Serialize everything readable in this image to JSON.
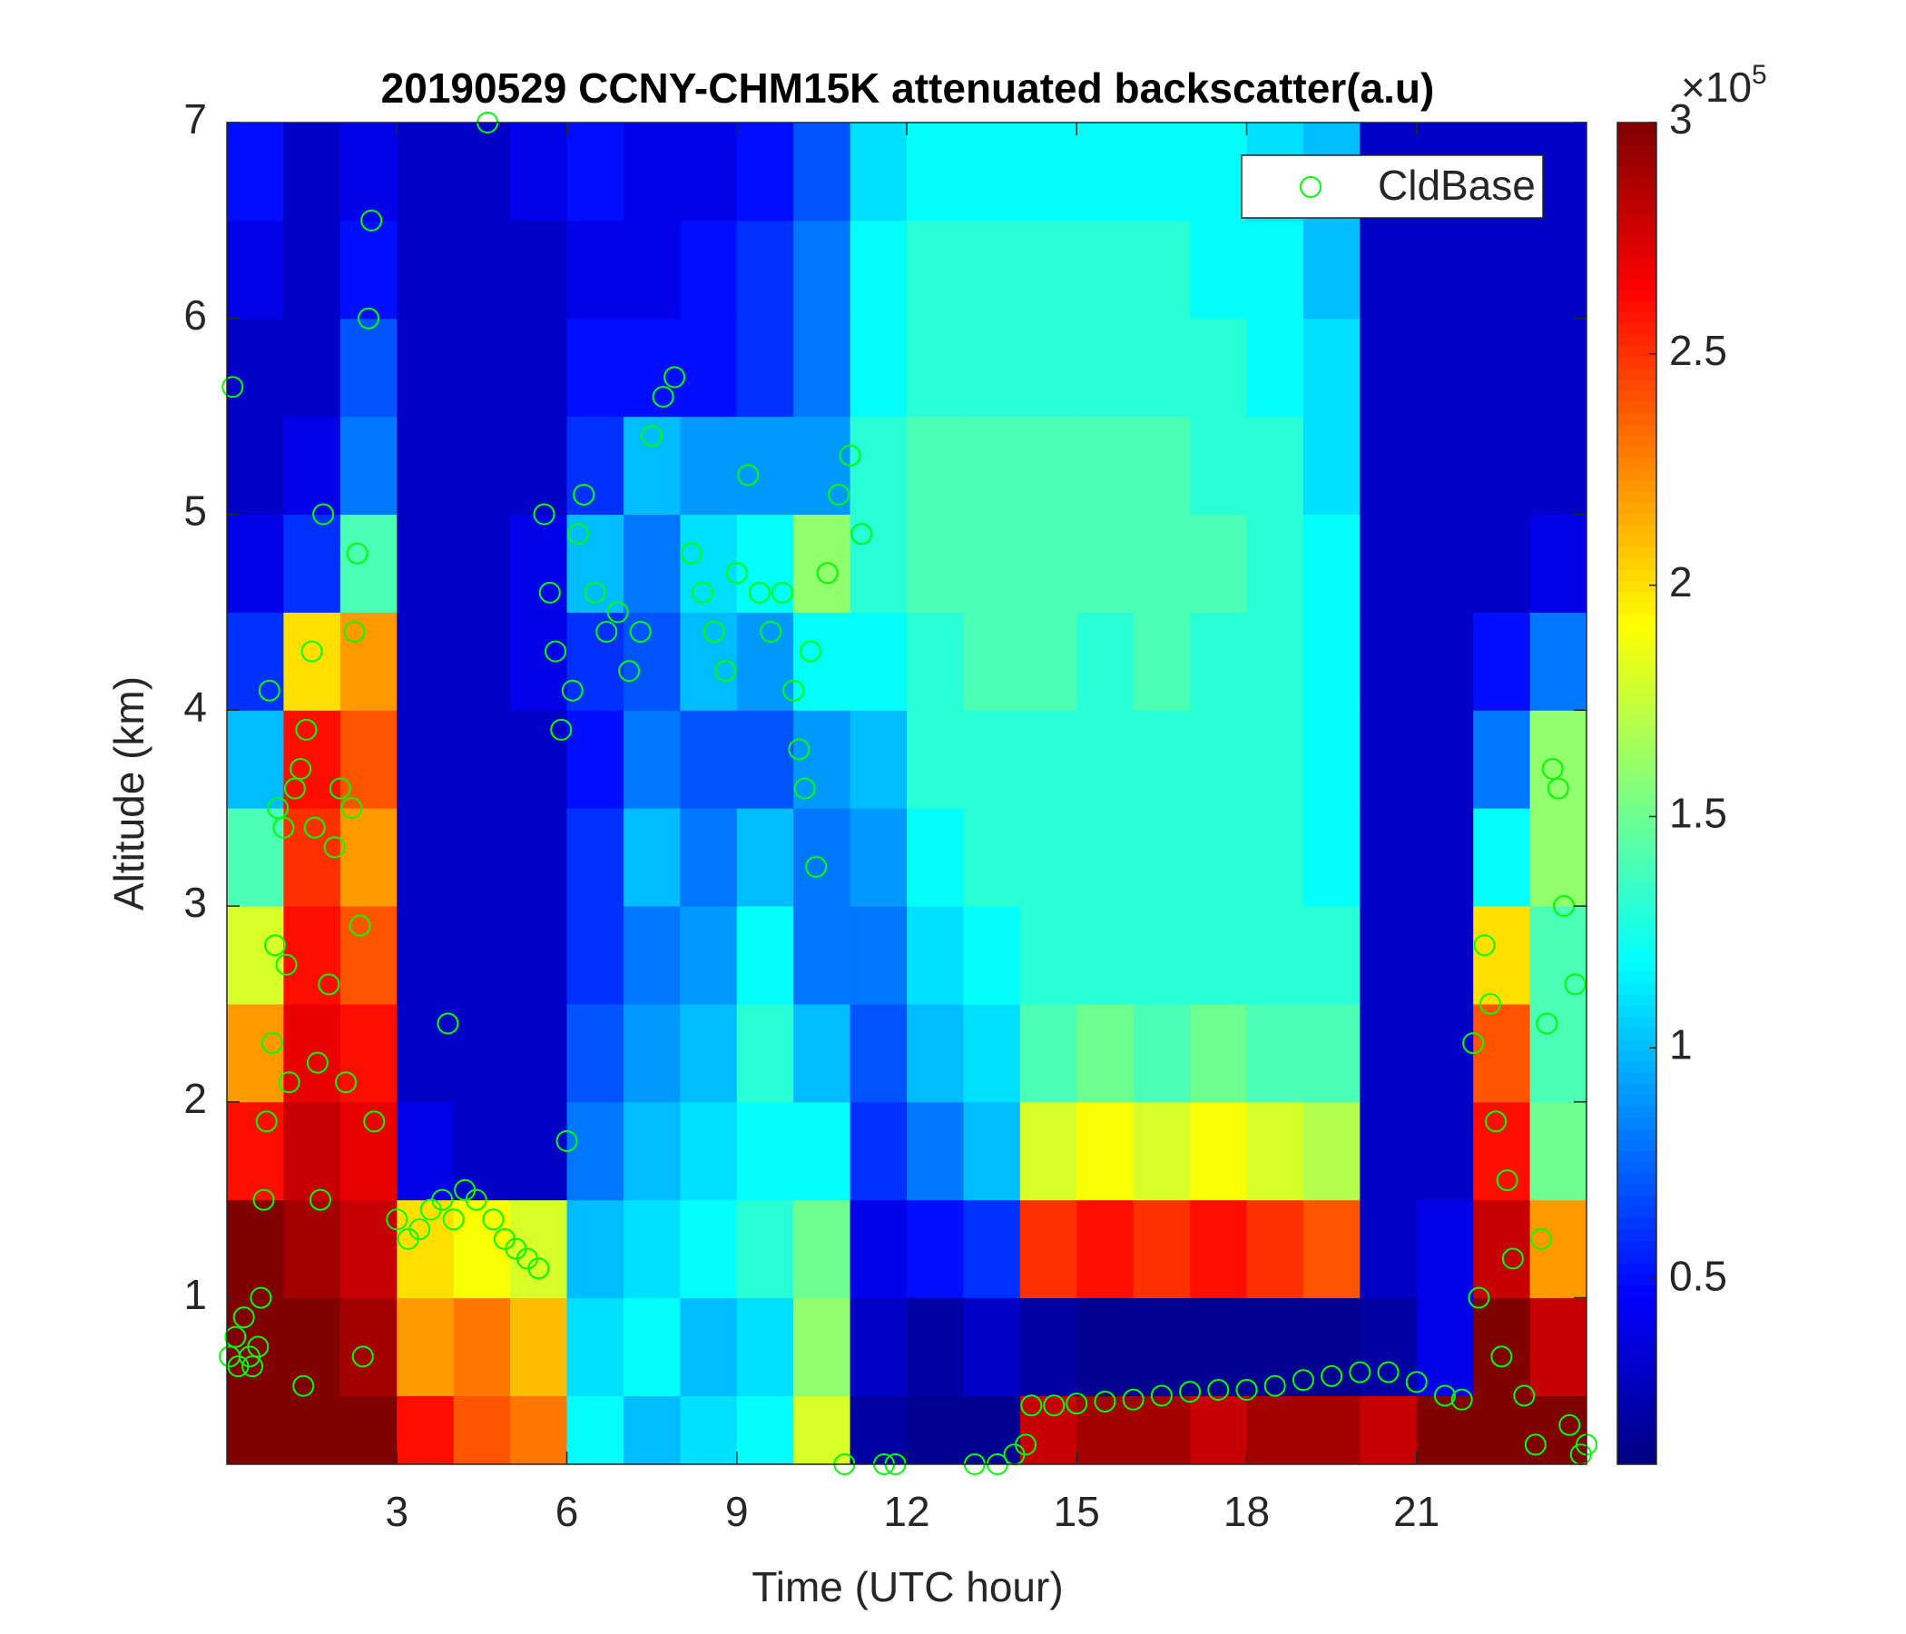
{
  "chart_data": {
    "type": "heatmap",
    "title": "20190529 CCNY-CHM15K attenuated backscatter(a.u)",
    "xlabel": "Time (UTC hour)",
    "ylabel": "Altitude (km)",
    "xlim": [
      0,
      24
    ],
    "ylim": [
      0.15,
      7
    ],
    "xticks": [
      3,
      6,
      9,
      12,
      15,
      18,
      21
    ],
    "yticks": [
      1,
      2,
      3,
      4,
      5,
      6,
      7
    ],
    "colormap": "jet",
    "clim": [
      0.1,
      3
    ],
    "cticks": [
      0.5,
      1,
      1.5,
      2,
      2.5,
      3
    ],
    "colorbar_scale_base": "×10",
    "colorbar_scale_exponent": 5,
    "xbins": [
      0,
      1,
      2,
      3,
      4,
      5,
      6,
      7,
      8,
      9,
      10,
      11,
      12,
      13,
      14,
      15,
      16,
      17,
      18,
      19,
      20,
      21,
      22,
      23,
      24
    ],
    "ybins": [
      0.15,
      0.5,
      1,
      1.5,
      2,
      2.5,
      3,
      3.5,
      4,
      4.5,
      5,
      5.5,
      6,
      6.5,
      7
    ],
    "z": [
      [
        3,
        3,
        3,
        2.6,
        2.4,
        2.3,
        1.2,
        1.0,
        1.1,
        1.2,
        1.8,
        0.2,
        0.15,
        0.15,
        2.8,
        2.9,
        2.9,
        2.8,
        2.9,
        2.9,
        2.8,
        3,
        3,
        3
      ],
      [
        3,
        3,
        2.9,
        2.2,
        2.3,
        2.1,
        1.1,
        1.2,
        1.0,
        1.1,
        1.6,
        0.3,
        0.2,
        0.3,
        0.2,
        0.15,
        0.15,
        0.15,
        0.15,
        0.15,
        0.2,
        0.4,
        3,
        2.8
      ],
      [
        3,
        2.9,
        2.8,
        2.0,
        1.9,
        1.8,
        1.0,
        1.1,
        1.2,
        1.3,
        1.5,
        0.4,
        0.5,
        0.6,
        2.5,
        2.6,
        2.5,
        2.6,
        2.5,
        2.4,
        0.3,
        0.4,
        2.8,
        2.2
      ],
      [
        2.6,
        2.8,
        2.7,
        0.4,
        0.3,
        0.3,
        0.8,
        1.0,
        1.1,
        1.2,
        1.2,
        0.6,
        0.8,
        1.0,
        1.8,
        1.9,
        1.8,
        1.9,
        1.8,
        1.7,
        0.3,
        0.3,
        2.6,
        1.5
      ],
      [
        2.2,
        2.7,
        2.6,
        0.3,
        0.3,
        0.3,
        0.7,
        0.9,
        1.0,
        1.3,
        1.0,
        0.7,
        1.0,
        1.1,
        1.4,
        1.5,
        1.4,
        1.5,
        1.4,
        1.4,
        0.3,
        0.3,
        2.4,
        1.4
      ],
      [
        1.8,
        2.6,
        2.4,
        0.3,
        0.3,
        0.3,
        0.6,
        0.8,
        0.9,
        1.2,
        0.8,
        0.8,
        1.1,
        1.2,
        1.3,
        1.3,
        1.3,
        1.3,
        1.3,
        1.3,
        0.3,
        0.3,
        2.0,
        1.4
      ],
      [
        1.4,
        2.5,
        2.2,
        0.3,
        0.3,
        0.3,
        0.6,
        1.0,
        0.8,
        1.0,
        0.8,
        0.9,
        1.2,
        1.3,
        1.3,
        1.3,
        1.3,
        1.3,
        1.3,
        1.2,
        0.3,
        0.3,
        1.2,
        1.6
      ],
      [
        1.0,
        2.6,
        2.4,
        0.3,
        0.3,
        0.3,
        0.5,
        0.8,
        0.7,
        0.7,
        0.9,
        1.0,
        1.3,
        1.3,
        1.3,
        1.3,
        1.3,
        1.3,
        1.3,
        1.2,
        0.3,
        0.3,
        0.8,
        1.6
      ],
      [
        0.6,
        2.0,
        2.2,
        0.3,
        0.3,
        0.4,
        0.6,
        0.7,
        1.0,
        0.9,
        1.2,
        1.2,
        1.3,
        1.4,
        1.4,
        1.3,
        1.4,
        1.3,
        1.3,
        1.2,
        0.3,
        0.3,
        0.5,
        0.8
      ],
      [
        0.4,
        0.6,
        1.4,
        0.3,
        0.3,
        0.4,
        1.0,
        0.8,
        1.1,
        1.2,
        1.6,
        1.3,
        1.4,
        1.4,
        1.4,
        1.4,
        1.4,
        1.4,
        1.3,
        1.2,
        0.3,
        0.3,
        0.3,
        0.4
      ],
      [
        0.3,
        0.4,
        0.8,
        0.3,
        0.3,
        0.3,
        0.6,
        1.0,
        0.9,
        0.9,
        0.9,
        1.3,
        1.4,
        1.4,
        1.4,
        1.4,
        1.4,
        1.3,
        1.3,
        1.1,
        0.3,
        0.3,
        0.3,
        0.3
      ],
      [
        0.3,
        0.3,
        0.7,
        0.3,
        0.3,
        0.3,
        0.5,
        0.5,
        0.5,
        0.6,
        0.8,
        1.2,
        1.3,
        1.3,
        1.3,
        1.3,
        1.3,
        1.3,
        1.2,
        1.1,
        0.3,
        0.3,
        0.3,
        0.3
      ],
      [
        0.4,
        0.3,
        0.5,
        0.3,
        0.3,
        0.3,
        0.4,
        0.4,
        0.5,
        0.6,
        0.8,
        1.2,
        1.3,
        1.3,
        1.3,
        1.3,
        1.3,
        1.2,
        1.2,
        1.0,
        0.3,
        0.3,
        0.3,
        0.3
      ],
      [
        0.5,
        0.3,
        0.4,
        0.3,
        0.3,
        0.4,
        0.5,
        0.4,
        0.4,
        0.5,
        0.7,
        1.1,
        1.2,
        1.2,
        1.2,
        1.2,
        1.2,
        1.2,
        1.1,
        1.0,
        0.3,
        0.3,
        0.3,
        0.3
      ]
    ],
    "legend": "northeast",
    "series": [
      {
        "name": "CldBase",
        "type": "scatter",
        "color": "#00ff00",
        "x": [
          0.05,
          0.15,
          0.2,
          0.3,
          0.4,
          0.45,
          0.55,
          0.1,
          0.6,
          0.65,
          0.7,
          0.75,
          0.8,
          0.85,
          0.9,
          1.0,
          1.05,
          1.1,
          1.2,
          1.3,
          1.35,
          1.4,
          1.5,
          1.55,
          1.6,
          1.65,
          1.7,
          1.8,
          1.9,
          2.0,
          2.1,
          2.2,
          2.25,
          2.3,
          2.35,
          2.4,
          2.5,
          2.55,
          2.6,
          3.0,
          3.2,
          3.4,
          3.6,
          3.8,
          3.9,
          4.0,
          4.2,
          4.4,
          4.6,
          4.7,
          4.9,
          5.1,
          5.3,
          5.5,
          5.6,
          5.7,
          5.8,
          5.9,
          6.0,
          6.1,
          6.2,
          6.3,
          6.5,
          6.7,
          6.9,
          7.1,
          7.3,
          7.5,
          7.7,
          7.9,
          8.2,
          8.4,
          8.6,
          8.8,
          9.0,
          9.2,
          9.4,
          9.6,
          9.8,
          10.0,
          10.1,
          10.2,
          10.3,
          10.4,
          10.6,
          10.8,
          11.0,
          11.2,
          10.9,
          11.6,
          11.8,
          13.2,
          13.6,
          13.9,
          14.1,
          14.2,
          14.6,
          15,
          15.5,
          16,
          16.5,
          17,
          17.5,
          18,
          18.5,
          19,
          19.5,
          20,
          20.5,
          21,
          21.5,
          21.8,
          22.0,
          22.1,
          22.2,
          22.3,
          22.4,
          22.5,
          22.6,
          22.7,
          22.9,
          23.1,
          23.2,
          23.3,
          23.4,
          23.5,
          23.6,
          23.7,
          23.8,
          23.9,
          24.0
        ],
        "values": [
          0.7,
          0.8,
          0.65,
          0.9,
          0.7,
          0.65,
          0.75,
          5.65,
          1.0,
          1.5,
          1.9,
          4.1,
          2.3,
          2.8,
          3.5,
          3.4,
          2.7,
          2.1,
          3.6,
          3.7,
          0.55,
          3.9,
          4.3,
          3.4,
          2.2,
          1.5,
          5.0,
          2.6,
          3.3,
          3.6,
          2.1,
          3.5,
          4.4,
          4.8,
          2.9,
          0.7,
          6.0,
          6.5,
          1.9,
          1.4,
          1.3,
          1.35,
          1.45,
          1.5,
          2.4,
          1.4,
          1.55,
          1.5,
          7.0,
          1.4,
          1.3,
          1.25,
          1.2,
          1.15,
          5.0,
          4.6,
          4.3,
          3.9,
          1.8,
          4.1,
          4.9,
          5.1,
          4.6,
          4.4,
          4.5,
          4.2,
          4.4,
          5.4,
          5.6,
          5.7,
          4.8,
          4.6,
          4.4,
          4.2,
          4.7,
          5.2,
          4.6,
          4.4,
          4.6,
          4.1,
          3.8,
          3.6,
          4.3,
          3.2,
          4.7,
          5.1,
          5.3,
          4.9,
          0.15,
          0.15,
          0.15,
          0.15,
          0.15,
          0.2,
          0.25,
          0.45,
          0.45,
          0.46,
          0.47,
          0.48,
          0.5,
          0.52,
          0.53,
          0.53,
          0.55,
          0.58,
          0.6,
          0.62,
          0.62,
          0.57,
          0.5,
          0.48,
          2.3,
          1.0,
          2.8,
          2.5,
          1.9,
          0.7,
          1.6,
          1.2,
          0.5,
          0.25,
          1.3,
          2.4,
          3.7,
          3.6,
          3.0,
          0.35,
          2.6,
          0.2,
          0.25
        ]
      }
    ]
  }
}
